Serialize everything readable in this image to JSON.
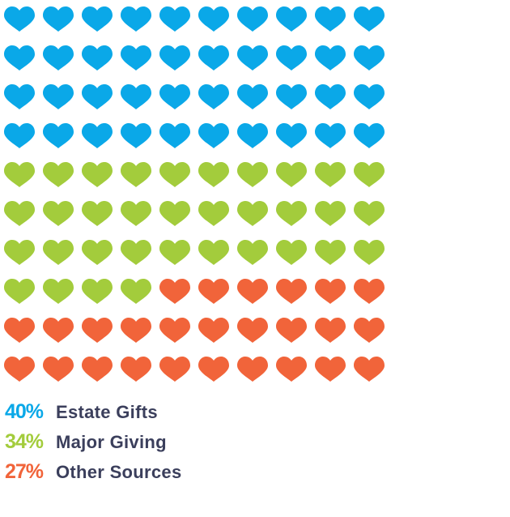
{
  "chart_data": {
    "type": "waffle",
    "units_per_row": 10,
    "rows": 10,
    "series": [
      {
        "name": "Estate Gifts",
        "label": "40%",
        "value": 40,
        "color": "#0aa8e8"
      },
      {
        "name": "Major Giving",
        "label": "34%",
        "value": 34,
        "color": "#a3cc3c"
      },
      {
        "name": "Other Sources",
        "label": "27%",
        "value": 27,
        "color": "#f1643a"
      }
    ]
  }
}
